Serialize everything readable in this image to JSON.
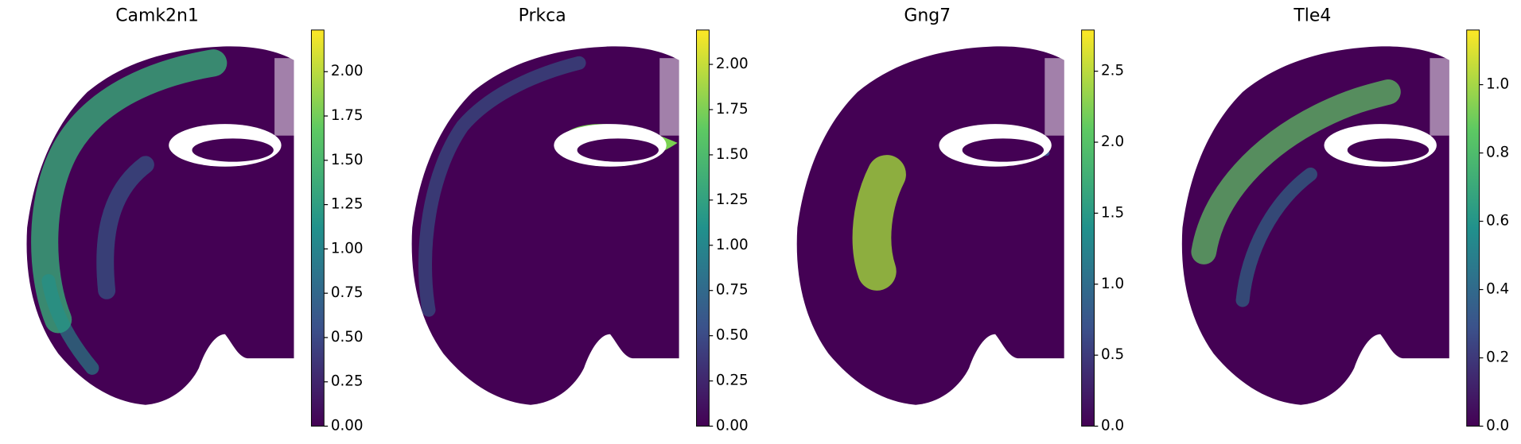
{
  "chart_data": [
    {
      "type": "spatial",
      "title": "Camk2n1",
      "colormap": [
        "#440154",
        "#3b528b",
        "#21918c",
        "#5ec962",
        "#fde725"
      ],
      "clim": [
        0,
        2.235
      ],
      "cticks": [
        {
          "value": 0,
          "label": "0.00"
        },
        0.25,
        {
          "value": 0.5,
          "label": "0.50"
        },
        0.75,
        {
          "value": 1,
          "label": "1.00"
        },
        1.25,
        {
          "value": 1.5,
          "label": "1.50"
        },
        1.75,
        {
          "value": 2,
          "label": "2.00"
        }
      ]
    },
    {
      "type": "spatial",
      "title": "Prkca",
      "colormap": [
        "#440154",
        "#3b528b",
        "#21918c",
        "#5ec962",
        "#fde725"
      ],
      "clim": [
        0,
        2.19
      ],
      "cticks": [
        {
          "value": 0,
          "label": "0.00"
        },
        0.25,
        {
          "value": 0.5,
          "label": "0.50"
        },
        0.75,
        {
          "value": 1,
          "label": "1.00"
        },
        1.25,
        {
          "value": 1.5,
          "label": "1.50"
        },
        1.75,
        {
          "value": 2,
          "label": "2.00"
        }
      ]
    },
    {
      "type": "spatial",
      "title": "Gng7",
      "colormap": [
        "#440154",
        "#3b528b",
        "#21918c",
        "#5ec962",
        "#fde725"
      ],
      "clim": [
        0,
        2.79
      ],
      "cticks": [
        {
          "value": 0,
          "label": "0.0"
        },
        0.5,
        {
          "value": 1,
          "label": "1.0"
        },
        1.5,
        {
          "value": 2,
          "label": "2.0"
        },
        2.5
      ]
    },
    {
      "type": "spatial",
      "title": "Tle4",
      "colormap": [
        "#440154",
        "#3b528b",
        "#21918c",
        "#5ec962",
        "#fde725"
      ],
      "clim": [
        0,
        1.16
      ],
      "cticks": [
        {
          "value": 0,
          "label": "0.0"
        },
        0.2,
        0.4,
        0.6,
        0.8,
        {
          "value": 1,
          "label": "1.0"
        }
      ]
    }
  ]
}
